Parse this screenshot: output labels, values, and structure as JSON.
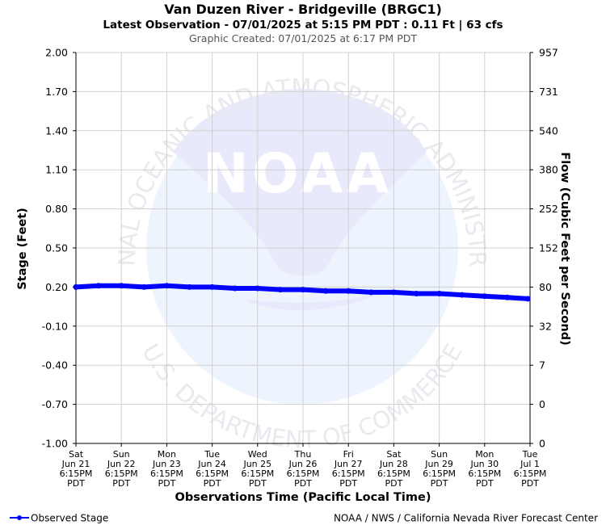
{
  "header": {
    "title": "Van Duzen River - Bridgeville (BRGC1)",
    "subtitle": "Latest Observation - 07/01/2025 at 5:15 PM PDT : 0.11 Ft | 63 cfs",
    "created": "Graphic Created: 07/01/2025 at 6:17 PM PDT"
  },
  "watermark": {
    "logo": "NOAA",
    "top_text": "NATIONAL OCEANIC AND ATMOSPHERIC ADMINISTRATION",
    "bottom_text": "U.S. DEPARTMENT OF COMMERCE"
  },
  "footer": {
    "legend_label": "Observed Stage",
    "credit": "NOAA / NWS / California Nevada River Forecast Center"
  },
  "colors": {
    "series": "#0000ff",
    "grid": "#d0d0d0",
    "watermark_dark": "#e8e9fa",
    "watermark_light": "#eef4fd"
  },
  "chart_data": {
    "type": "line",
    "xlabel": "Observations Time (Pacific Local Time)",
    "ylabel": "Stage (Feet)",
    "y2label": "Flow (Cubic Feet per Second)",
    "ylim": [
      -1.0,
      2.0
    ],
    "yticks": [
      "2.00",
      "1.70",
      "1.40",
      "1.10",
      "0.80",
      "0.50",
      "0.20",
      "-0.10",
      "-0.40",
      "-0.70",
      "-1.00"
    ],
    "y2ticks": [
      "957",
      "731",
      "540",
      "380",
      "252",
      "152",
      "80",
      "32",
      "7",
      "0",
      "0"
    ],
    "xlim": [
      0,
      10
    ],
    "xticks": [
      [
        "Sat",
        "Jun 21",
        "6:15PM",
        "PDT"
      ],
      [
        "Sun",
        "Jun 22",
        "6:15PM",
        "PDT"
      ],
      [
        "Mon",
        "Jun 23",
        "6:15PM",
        "PDT"
      ],
      [
        "Tue",
        "Jun 24",
        "6:15PM",
        "PDT"
      ],
      [
        "Wed",
        "Jun 25",
        "6:15PM",
        "PDT"
      ],
      [
        "Thu",
        "Jun 26",
        "6:15PM",
        "PDT"
      ],
      [
        "Fri",
        "Jun 27",
        "6:15PM",
        "PDT"
      ],
      [
        "Sat",
        "Jun 28",
        "6:15PM",
        "PDT"
      ],
      [
        "Sun",
        "Jun 29",
        "6:15PM",
        "PDT"
      ],
      [
        "Mon",
        "Jun 30",
        "6:15PM",
        "PDT"
      ],
      [
        "Tue",
        "Jul 1",
        "6:15PM",
        "PDT"
      ]
    ],
    "grid": true,
    "legend": "bottom-left",
    "series": [
      {
        "name": "Observed Stage",
        "x": [
          0.0,
          0.5,
          1.0,
          1.5,
          2.0,
          2.5,
          3.0,
          3.5,
          4.0,
          4.5,
          5.0,
          5.5,
          6.0,
          6.5,
          7.0,
          7.5,
          8.0,
          8.5,
          9.0,
          9.5,
          9.95
        ],
        "y": [
          0.2,
          0.21,
          0.21,
          0.2,
          0.21,
          0.2,
          0.2,
          0.19,
          0.19,
          0.18,
          0.18,
          0.17,
          0.17,
          0.16,
          0.16,
          0.15,
          0.15,
          0.14,
          0.13,
          0.12,
          0.11
        ]
      }
    ]
  }
}
